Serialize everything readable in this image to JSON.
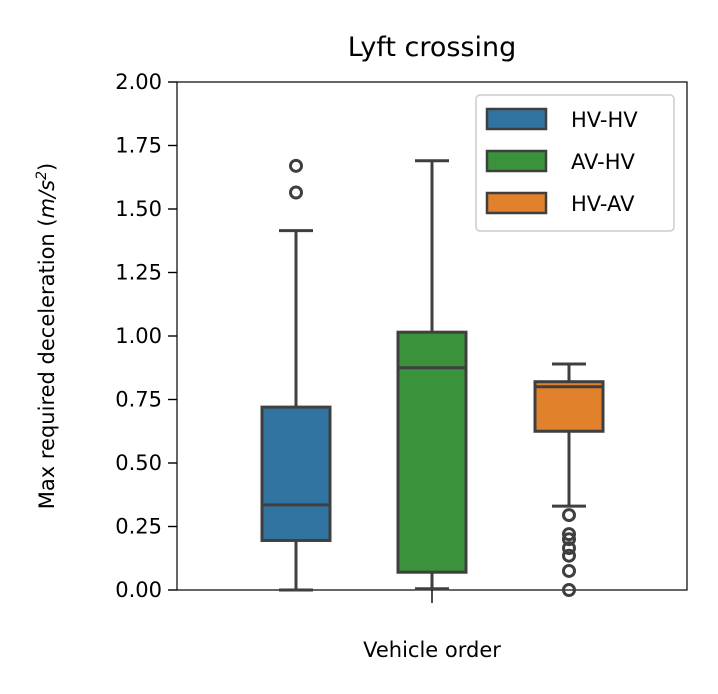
{
  "chart_data": {
    "type": "box",
    "title": "Lyft crossing",
    "xlabel": "Vehicle order",
    "ylabel": "Max required deceleration (m/s²)",
    "ylabel_parts": {
      "prefix": "Max required deceleration (",
      "unit_m": "m",
      "unit_sep": "/",
      "unit_s": "s",
      "unit_exp": "2",
      "suffix": ")"
    },
    "ylim": [
      0,
      2
    ],
    "yticks": [
      "0.00",
      "0.25",
      "0.50",
      "0.75",
      "1.00",
      "1.25",
      "1.50",
      "1.75",
      "2.00"
    ],
    "grid": false,
    "legend_position": "top-right",
    "series": [
      {
        "name": "HV-HV",
        "color": "#3274a1",
        "whisker_low": 0.0,
        "q1": 0.195,
        "median": 0.335,
        "q3": 0.72,
        "whisker_high": 1.415,
        "outliers": [
          1.565,
          1.67
        ]
      },
      {
        "name": "AV-HV",
        "color": "#3a923a",
        "whisker_low": 0.005,
        "q1": 0.07,
        "median": 0.875,
        "q3": 1.015,
        "whisker_high": 1.69,
        "outliers": []
      },
      {
        "name": "HV-AV",
        "color": "#e1812c",
        "whisker_low": 0.33,
        "q1": 0.625,
        "median": 0.8,
        "q3": 0.82,
        "whisker_high": 0.89,
        "outliers": [
          0.0,
          0.075,
          0.135,
          0.165,
          0.2,
          0.22,
          0.295
        ]
      }
    ]
  }
}
